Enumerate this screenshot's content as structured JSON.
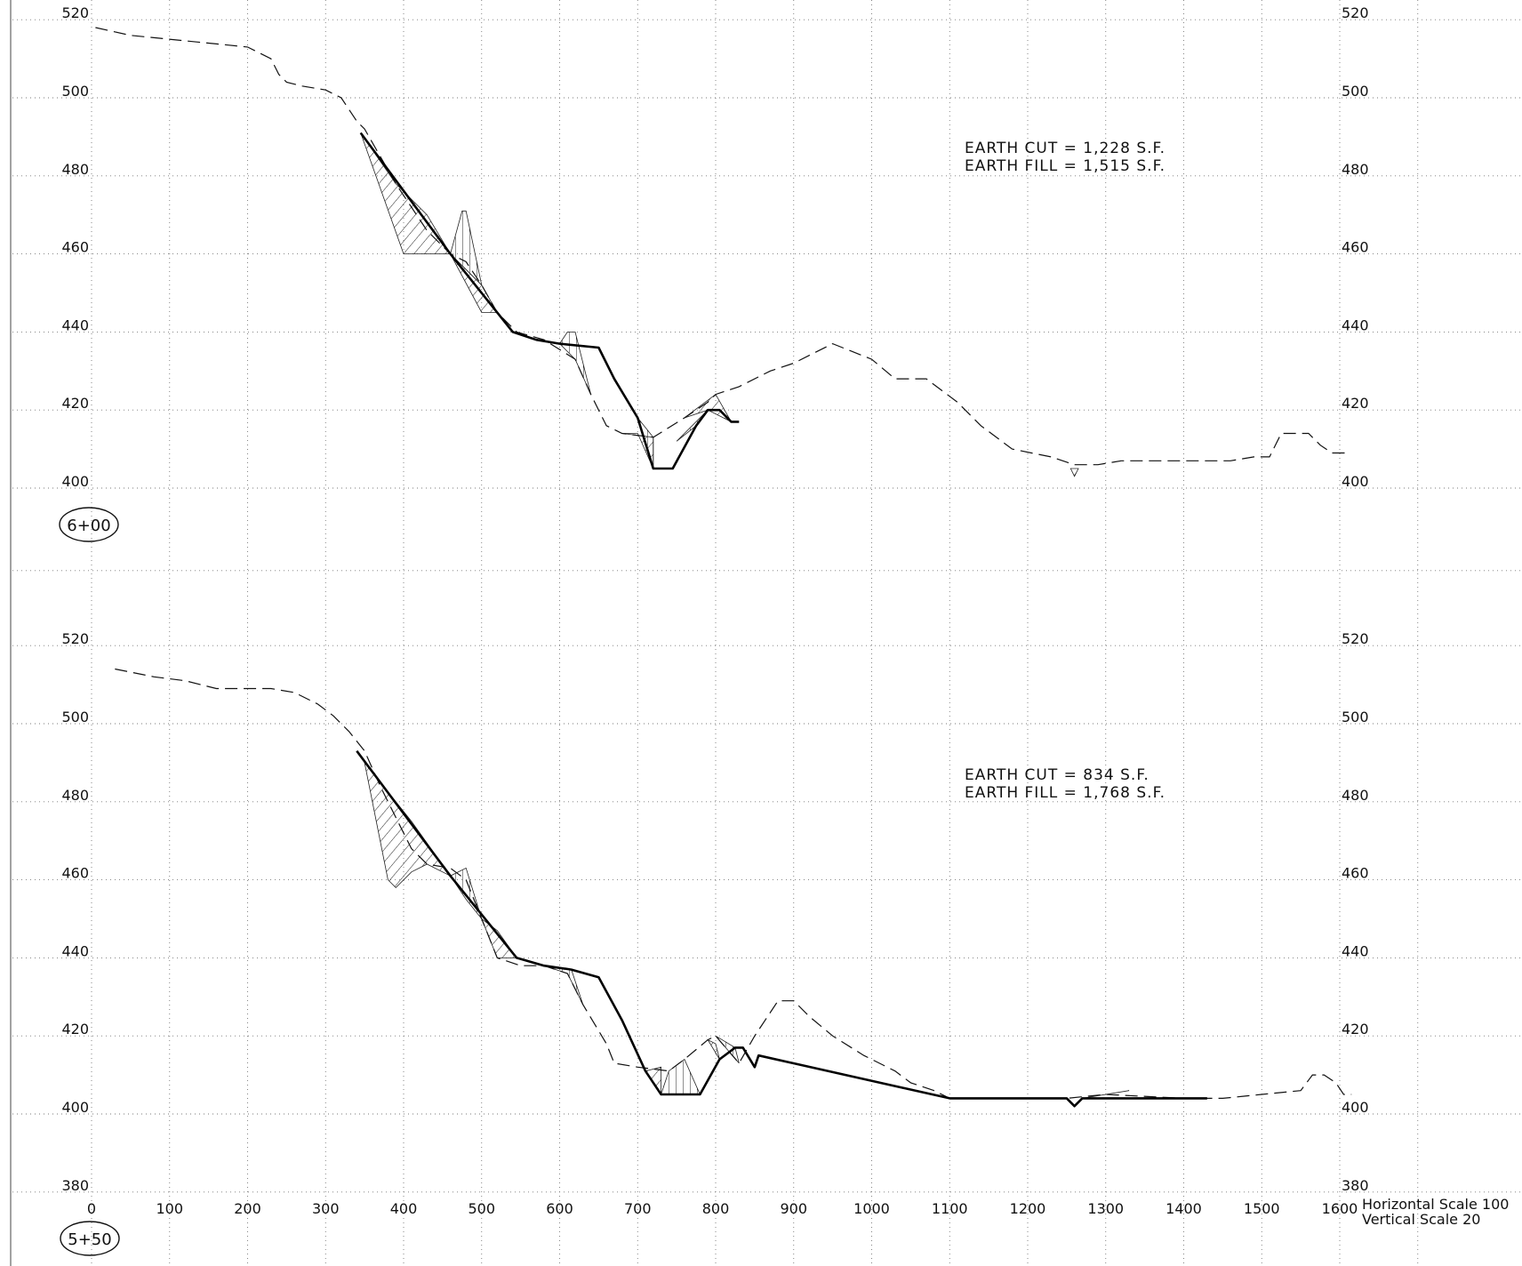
{
  "chart_data": [
    {
      "type": "cross-section",
      "station": "6+00",
      "earth_cut": "EARTH CUT = 1,228 S.F.",
      "earth_fill": "EARTH FILL = 1,515 S.F.",
      "ylim": [
        400,
        520
      ],
      "y_ticks": [
        "520",
        "500",
        "480",
        "460",
        "440",
        "420",
        "400"
      ],
      "existing_ground": [
        [
          5,
          518
        ],
        [
          50,
          516
        ],
        [
          150,
          514
        ],
        [
          200,
          513
        ],
        [
          230,
          510
        ],
        [
          240,
          506
        ],
        [
          250,
          504
        ],
        [
          270,
          503
        ],
        [
          300,
          502
        ],
        [
          320,
          500
        ],
        [
          340,
          494
        ],
        [
          350,
          492
        ],
        [
          390,
          478
        ],
        [
          430,
          466
        ],
        [
          460,
          460
        ],
        [
          480,
          458
        ],
        [
          500,
          452
        ],
        [
          520,
          445
        ],
        [
          545,
          440
        ],
        [
          580,
          438
        ],
        [
          620,
          433
        ],
        [
          640,
          424
        ],
        [
          660,
          416
        ],
        [
          680,
          414
        ],
        [
          720,
          413
        ],
        [
          760,
          418
        ],
        [
          790,
          422
        ],
        [
          800,
          424
        ],
        [
          830,
          426
        ],
        [
          870,
          430
        ],
        [
          900,
          432
        ],
        [
          950,
          437
        ],
        [
          1000,
          433
        ],
        [
          1030,
          428
        ],
        [
          1070,
          428
        ],
        [
          1110,
          422
        ],
        [
          1140,
          416
        ],
        [
          1180,
          410
        ],
        [
          1230,
          408
        ],
        [
          1260,
          406
        ],
        [
          1290,
          406
        ],
        [
          1320,
          407
        ],
        [
          1350,
          407
        ],
        [
          1400,
          407
        ],
        [
          1430,
          407
        ],
        [
          1460,
          407
        ],
        [
          1490,
          408
        ],
        [
          1510,
          408
        ],
        [
          1525,
          414
        ],
        [
          1540,
          414
        ],
        [
          1560,
          414
        ],
        [
          1575,
          411
        ],
        [
          1590,
          409
        ],
        [
          1610,
          409
        ]
      ],
      "proposed": [
        [
          345,
          491
        ],
        [
          460,
          460
        ],
        [
          540,
          440
        ],
        [
          570,
          438
        ],
        [
          600,
          437
        ],
        [
          650,
          436
        ],
        [
          670,
          428
        ],
        [
          700,
          418
        ],
        [
          720,
          405
        ],
        [
          745,
          405
        ],
        [
          775,
          416
        ],
        [
          790,
          420
        ],
        [
          805,
          420
        ],
        [
          820,
          417
        ],
        [
          830,
          417
        ]
      ],
      "cut_patches": [
        [
          [
            345,
            491
          ],
          [
            400,
            460
          ],
          [
            430,
            460
          ],
          [
            460,
            460
          ],
          [
            430,
            470
          ],
          [
            390,
            478
          ]
        ],
        [
          [
            460,
            460
          ],
          [
            500,
            452
          ],
          [
            520,
            445
          ],
          [
            500,
            445
          ]
        ],
        [
          [
            680,
            414
          ],
          [
            720,
            413
          ],
          [
            720,
            405
          ],
          [
            700,
            414
          ]
        ],
        [
          [
            760,
            418
          ],
          [
            800,
            424
          ],
          [
            820,
            417
          ],
          [
            790,
            420
          ]
        ],
        [
          [
            1255,
            405
          ],
          [
            1265,
            405
          ],
          [
            1260,
            403
          ]
        ]
      ],
      "fill_patches": [
        [
          [
            460,
            460
          ],
          [
            475,
            471
          ],
          [
            480,
            471
          ],
          [
            500,
            452
          ]
        ],
        [
          [
            600,
            437
          ],
          [
            620,
            433
          ],
          [
            640,
            424
          ],
          [
            620,
            440
          ],
          [
            610,
            440
          ]
        ],
        [
          [
            700,
            418
          ],
          [
            720,
            413
          ],
          [
            720,
            405
          ]
        ],
        [
          [
            750,
            412
          ],
          [
            775,
            416
          ],
          [
            790,
            420
          ]
        ]
      ]
    },
    {
      "type": "cross-section",
      "station": "5+50",
      "earth_cut": "EARTH CUT = 834 S.F.",
      "earth_fill": "EARTH FILL = 1,768 S.F.",
      "ylim": [
        380,
        520
      ],
      "y_ticks": [
        "520",
        "500",
        "480",
        "460",
        "440",
        "420",
        "400",
        "380"
      ],
      "x_ticks": [
        "0",
        "100",
        "200",
        "300",
        "400",
        "500",
        "600",
        "700",
        "800",
        "900",
        "1000",
        "1100",
        "1200",
        "1300",
        "1400",
        "1500",
        "1600"
      ],
      "existing_ground": [
        [
          30,
          514
        ],
        [
          80,
          512
        ],
        [
          120,
          511
        ],
        [
          160,
          509
        ],
        [
          200,
          509
        ],
        [
          230,
          509
        ],
        [
          260,
          508
        ],
        [
          290,
          505
        ],
        [
          310,
          502
        ],
        [
          330,
          498
        ],
        [
          350,
          493
        ],
        [
          370,
          484
        ],
        [
          390,
          476
        ],
        [
          410,
          468
        ],
        [
          430,
          464
        ],
        [
          460,
          463
        ],
        [
          480,
          460
        ],
        [
          500,
          450
        ],
        [
          520,
          440
        ],
        [
          550,
          438
        ],
        [
          580,
          438
        ],
        [
          610,
          436
        ],
        [
          630,
          428
        ],
        [
          660,
          418
        ],
        [
          670,
          413
        ],
        [
          700,
          412
        ],
        [
          740,
          411
        ],
        [
          760,
          414
        ],
        [
          790,
          419
        ],
        [
          800,
          420
        ],
        [
          830,
          413
        ],
        [
          850,
          420
        ],
        [
          880,
          429
        ],
        [
          900,
          429
        ],
        [
          920,
          425
        ],
        [
          950,
          420
        ],
        [
          990,
          415
        ],
        [
          1030,
          411
        ],
        [
          1050,
          408
        ],
        [
          1080,
          406
        ],
        [
          1100,
          404
        ],
        [
          1200,
          404
        ],
        [
          1250,
          404
        ],
        [
          1300,
          405
        ],
        [
          1400,
          404
        ],
        [
          1450,
          404
        ],
        [
          1500,
          405
        ],
        [
          1550,
          406
        ],
        [
          1565,
          410
        ],
        [
          1580,
          410
        ],
        [
          1595,
          408
        ],
        [
          1605,
          405
        ],
        [
          1615,
          405
        ]
      ],
      "proposed": [
        [
          340,
          493
        ],
        [
          460,
          461
        ],
        [
          545,
          440
        ],
        [
          580,
          438
        ],
        [
          615,
          437
        ],
        [
          650,
          435
        ],
        [
          680,
          424
        ],
        [
          710,
          411
        ],
        [
          730,
          405
        ],
        [
          780,
          405
        ],
        [
          805,
          414
        ],
        [
          825,
          417
        ],
        [
          835,
          417
        ],
        [
          850,
          412
        ],
        [
          855,
          415
        ],
        [
          1100,
          404
        ],
        [
          1250,
          404
        ],
        [
          1260,
          402
        ],
        [
          1270,
          404
        ],
        [
          1300,
          404
        ],
        [
          1430,
          404
        ]
      ],
      "cut_patches": [
        [
          [
            350,
            490
          ],
          [
            380,
            460
          ],
          [
            390,
            458
          ],
          [
            410,
            462
          ],
          [
            430,
            464
          ],
          [
            460,
            461
          ],
          [
            410,
            475
          ]
        ],
        [
          [
            500,
            450
          ],
          [
            520,
            440
          ],
          [
            545,
            440
          ],
          [
            520,
            447
          ]
        ],
        [
          [
            710,
            411
          ],
          [
            730,
            405
          ],
          [
            730,
            412
          ]
        ],
        [
          [
            790,
            419
          ],
          [
            800,
            418
          ],
          [
            805,
            414
          ]
        ]
      ],
      "fill_patches": [
        [
          [
            460,
            461
          ],
          [
            480,
            463
          ],
          [
            500,
            450
          ],
          [
            480,
            455
          ]
        ],
        [
          [
            580,
            438
          ],
          [
            615,
            437
          ],
          [
            630,
            428
          ],
          [
            610,
            436
          ]
        ],
        [
          [
            730,
            405
          ],
          [
            780,
            405
          ],
          [
            760,
            414
          ],
          [
            740,
            411
          ]
        ],
        [
          [
            800,
            420
          ],
          [
            825,
            417
          ],
          [
            830,
            413
          ]
        ],
        [
          [
            1270,
            404
          ],
          [
            1330,
            406
          ],
          [
            1300,
            405
          ]
        ]
      ]
    }
  ],
  "scale_note": {
    "horizontal": "Horizontal Scale 100",
    "vertical": "Vertical Scale 20"
  }
}
